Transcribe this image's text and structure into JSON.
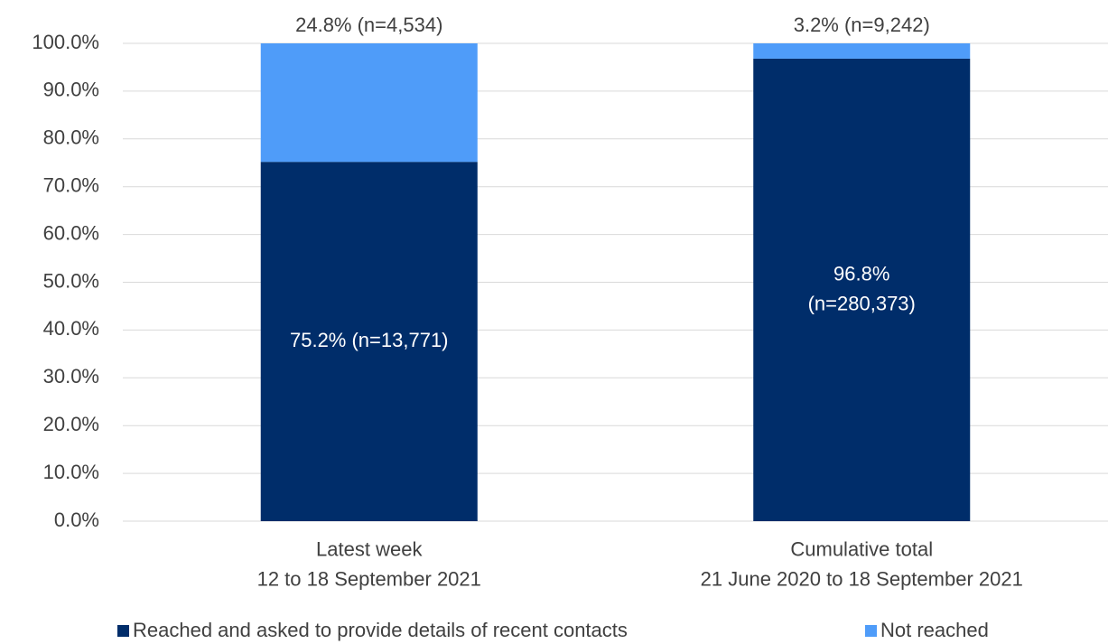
{
  "chart_data": {
    "type": "stacked_bar",
    "categories": [
      "Latest week\n12 to 18 September 2021",
      "Cumulative total\n21 June 2020 to 18 September 2021"
    ],
    "series": [
      {
        "name": "Reached and asked to provide details of recent contacts",
        "color": "#002d6a",
        "values": [
          75.2,
          96.8
        ],
        "value_labels": [
          "75.2% (n=13,771)",
          "96.8%\n(n=280,373)"
        ]
      },
      {
        "name": "Not reached",
        "color": "#4f9cf9",
        "values": [
          24.8,
          3.2
        ],
        "value_labels": [
          "24.8% (n=4,534)",
          "3.2% (n=9,242)"
        ]
      }
    ],
    "ylim": [
      0,
      100
    ],
    "yticks": [
      {
        "value": 0,
        "label": "0.0%"
      },
      {
        "value": 10,
        "label": "10.0%"
      },
      {
        "value": 20,
        "label": "20.0%"
      },
      {
        "value": 30,
        "label": "30.0%"
      },
      {
        "value": 40,
        "label": "40.0%"
      },
      {
        "value": 50,
        "label": "50.0%"
      },
      {
        "value": 60,
        "label": "60.0%"
      },
      {
        "value": 70,
        "label": "70.0%"
      },
      {
        "value": 80,
        "label": "80.0%"
      },
      {
        "value": 90,
        "label": "90.0%"
      },
      {
        "value": 100,
        "label": "100.0%"
      }
    ],
    "grid": true,
    "legend": "bottom"
  }
}
